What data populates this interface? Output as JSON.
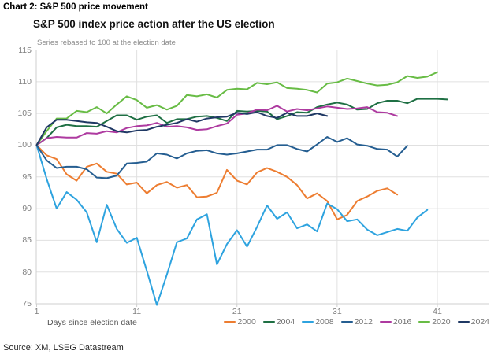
{
  "header": {
    "label": "Chart 2: S&P 500 price movement"
  },
  "chart": {
    "title": "S&P 500 index price action after the US election",
    "subtitle": "Series rebased to 100 at the election date"
  },
  "source": "Source: XM, LSEG Datastream",
  "colors": {
    "grid": "#e0e0e0",
    "border": "#cfcfcf",
    "tick_text": "#808080"
  },
  "chart_data": {
    "type": "line",
    "title": "S&P 500 index price action after the US election",
    "subtitle": "Series rebased to 100 at the election date",
    "xlabel": "Days since election date",
    "ylabel": "",
    "x_axis": {
      "ticks": [
        1,
        11,
        21,
        31,
        41
      ],
      "min": 1,
      "max": 46
    },
    "y_axis": {
      "ticks": [
        75,
        80,
        85,
        90,
        95,
        100,
        105,
        110,
        115
      ],
      "min": 75,
      "max": 115
    },
    "grid": true,
    "legend_position": "bottom-right",
    "x_start_day": 1,
    "x_step": 1,
    "series": [
      {
        "name": "2000",
        "color": "#ED7D31",
        "values": [
          100,
          98.4,
          97.8,
          95.4,
          94.4,
          96.6,
          97.1,
          95.8,
          95.5,
          93.8,
          94.1,
          92.4,
          93.7,
          94.2,
          93.3,
          93.7,
          91.8,
          91.9,
          92.5,
          96.1,
          94.4,
          93.8,
          95.7,
          96.4,
          95.8,
          95.0,
          93.7,
          91.6,
          92.4,
          91.2,
          88.3,
          89.0,
          91.2,
          91.9,
          92.8,
          93.2,
          92.2
        ]
      },
      {
        "name": "2004",
        "color": "#1F7044",
        "values": [
          100,
          101.1,
          102.8,
          103.2,
          103.0,
          103.0,
          102.9,
          103.8,
          104.7,
          104.7,
          104.0,
          104.5,
          104.7,
          103.5,
          104.1,
          104.1,
          104.5,
          104.6,
          104.3,
          103.8,
          105.4,
          105.3,
          105.4,
          105.3,
          104.1,
          104.6,
          105.2,
          105.1,
          106.0,
          106.4,
          106.7,
          106.4,
          105.6,
          105.7,
          106.6,
          107.0,
          107.0,
          106.6,
          107.3,
          107.3,
          107.3,
          107.2
        ]
      },
      {
        "name": "2008",
        "color": "#2EA3DF",
        "values": [
          100,
          94.7,
          90.0,
          92.6,
          91.4,
          89.4,
          84.7,
          90.6,
          86.8,
          84.6,
          85.4,
          80.2,
          74.8,
          79.6,
          84.7,
          85.3,
          88.3,
          89.1,
          81.2,
          84.4,
          86.6,
          84.0,
          87.1,
          90.5,
          88.4,
          89.4,
          86.9,
          87.5,
          86.4,
          90.8,
          89.9,
          88.0,
          88.3,
          86.7,
          85.8,
          86.3,
          86.8,
          86.5,
          88.6,
          89.8
        ]
      },
      {
        "name": "2012",
        "color": "#255E91",
        "values": [
          100,
          97.6,
          96.4,
          96.6,
          96.6,
          96.2,
          94.9,
          94.8,
          95.2,
          97.1,
          97.2,
          97.4,
          98.7,
          98.5,
          97.9,
          98.7,
          99.1,
          99.2,
          98.7,
          98.5,
          98.7,
          99.0,
          99.3,
          99.3,
          100.0,
          100.0,
          99.4,
          99.0,
          100.1,
          101.3,
          100.5,
          101.1,
          100.1,
          99.9,
          99.4,
          99.3,
          98.2,
          99.9
        ]
      },
      {
        "name": "2016",
        "color": "#AE3AA0",
        "values": [
          100,
          101.1,
          101.3,
          101.2,
          101.2,
          101.9,
          101.8,
          102.2,
          102.0,
          102.7,
          103.0,
          103.1,
          103.5,
          102.9,
          103.0,
          102.8,
          102.4,
          102.5,
          103.0,
          103.4,
          104.8,
          105.0,
          105.6,
          105.5,
          106.2,
          105.3,
          105.7,
          105.5,
          105.8,
          106.1,
          105.9,
          105.7,
          105.8,
          106.0,
          105.2,
          105.1,
          104.6
        ]
      },
      {
        "name": "2020",
        "color": "#68BC45",
        "values": [
          100,
          102.2,
          104.2,
          104.2,
          105.4,
          105.2,
          106.0,
          105.0,
          106.4,
          107.7,
          107.1,
          105.9,
          106.3,
          105.6,
          106.2,
          107.9,
          107.7,
          108.0,
          107.5,
          108.7,
          108.9,
          108.8,
          109.8,
          109.6,
          109.9,
          109.0,
          108.9,
          108.7,
          108.3,
          109.7,
          109.9,
          110.5,
          110.1,
          109.7,
          109.4,
          109.5,
          109.9,
          110.9,
          110.6,
          110.8,
          111.5
        ]
      },
      {
        "name": "2024",
        "color": "#1F3864",
        "values": [
          100,
          102.8,
          104.0,
          104.0,
          103.8,
          103.6,
          103.5,
          102.9,
          102.2,
          102.0,
          102.3,
          102.4,
          102.9,
          103.2,
          103.5,
          104.1,
          103.7,
          104.2,
          104.4,
          104.5,
          105.1,
          104.9,
          105.2,
          104.6,
          104.3,
          105.1,
          104.6,
          104.6,
          105.0,
          104.6
        ]
      }
    ]
  }
}
